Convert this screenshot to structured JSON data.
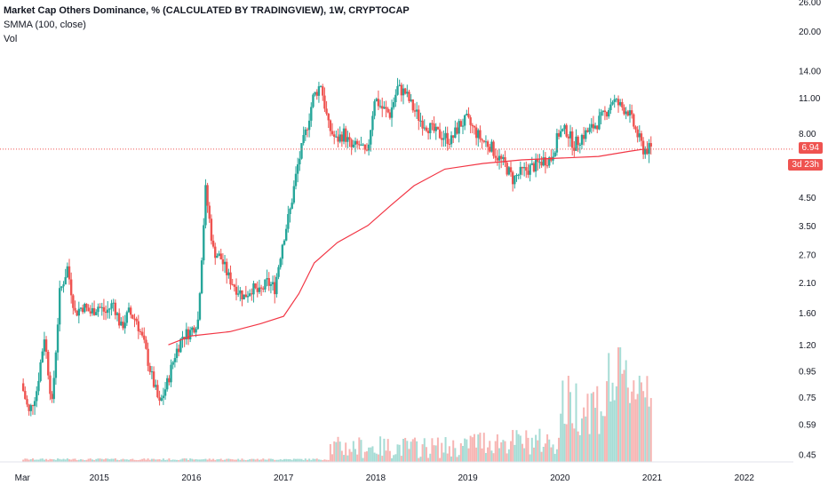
{
  "legend": {
    "title": "Market Cap Others Dominance, % (CALCULATED BY TRADINGVIEW), 1W, CRYPTOCAP",
    "indicator": "SMMA (100, close)",
    "volume_label": "Vol"
  },
  "price_tag": "6.94",
  "timer_tag": "3d 23h",
  "colors": {
    "up": "#26a69a",
    "down": "#ef5350",
    "smma": "#f23645",
    "axis_text": "#131722",
    "last_line": "#ef5350"
  },
  "chart_data": {
    "type": "candlestick",
    "scale": "log",
    "ylim": [
      0.42,
      26
    ],
    "y_ticks": [
      "26.00",
      "20.00",
      "14.00",
      "11.00",
      "8.00",
      "6.94",
      "4.50",
      "3.50",
      "2.70",
      "2.10",
      "1.60",
      "1.20",
      "0.95",
      "0.75",
      "0.59",
      "0.45"
    ],
    "x_ticks": [
      "Mar",
      "2015",
      "2016",
      "2017",
      "2018",
      "2019",
      "2020",
      "2021",
      "2022"
    ],
    "last_value": 6.94,
    "close_series": [
      {
        "date": "2014-03",
        "value": 0.85
      },
      {
        "date": "2014-04",
        "value": 0.65
      },
      {
        "date": "2014-05",
        "value": 0.8
      },
      {
        "date": "2014-06",
        "value": 1.3
      },
      {
        "date": "2014-07",
        "value": 0.7
      },
      {
        "date": "2014-08",
        "value": 1.9
      },
      {
        "date": "2014-09",
        "value": 2.4
      },
      {
        "date": "2014-10",
        "value": 1.6
      },
      {
        "date": "2014-11",
        "value": 1.7
      },
      {
        "date": "2014-12",
        "value": 1.6
      },
      {
        "date": "2015-01",
        "value": 1.7
      },
      {
        "date": "2015-02",
        "value": 1.6
      },
      {
        "date": "2015-03",
        "value": 1.75
      },
      {
        "date": "2015-04",
        "value": 1.4
      },
      {
        "date": "2015-05",
        "value": 1.6
      },
      {
        "date": "2015-06",
        "value": 1.5
      },
      {
        "date": "2015-07",
        "value": 1.2
      },
      {
        "date": "2015-08",
        "value": 0.9
      },
      {
        "date": "2015-09",
        "value": 0.7
      },
      {
        "date": "2015-10",
        "value": 0.85
      },
      {
        "date": "2015-11",
        "value": 1.1
      },
      {
        "date": "2015-12",
        "value": 1.3
      },
      {
        "date": "2016-01",
        "value": 1.35
      },
      {
        "date": "2016-02",
        "value": 1.5
      },
      {
        "date": "2016-03",
        "value": 4.8
      },
      {
        "date": "2016-04",
        "value": 2.8
      },
      {
        "date": "2016-05",
        "value": 2.6
      },
      {
        "date": "2016-06",
        "value": 2.2
      },
      {
        "date": "2016-07",
        "value": 2.0
      },
      {
        "date": "2016-08",
        "value": 1.85
      },
      {
        "date": "2016-09",
        "value": 2.0
      },
      {
        "date": "2016-10",
        "value": 1.9
      },
      {
        "date": "2016-11",
        "value": 2.1
      },
      {
        "date": "2016-12",
        "value": 2.0
      },
      {
        "date": "2017-01",
        "value": 3.0
      },
      {
        "date": "2017-02",
        "value": 4.0
      },
      {
        "date": "2017-03",
        "value": 6.0
      },
      {
        "date": "2017-04",
        "value": 8.0
      },
      {
        "date": "2017-05",
        "value": 11.0
      },
      {
        "date": "2017-06",
        "value": 12.5
      },
      {
        "date": "2017-07",
        "value": 8.5
      },
      {
        "date": "2017-08",
        "value": 7.5
      },
      {
        "date": "2017-09",
        "value": 8.0
      },
      {
        "date": "2017-10",
        "value": 7.0
      },
      {
        "date": "2017-11",
        "value": 7.2
      },
      {
        "date": "2017-12",
        "value": 6.5
      },
      {
        "date": "2018-01",
        "value": 11.0
      },
      {
        "date": "2018-02",
        "value": 10.0
      },
      {
        "date": "2018-03",
        "value": 9.5
      },
      {
        "date": "2018-04",
        "value": 12.0
      },
      {
        "date": "2018-05",
        "value": 11.5
      },
      {
        "date": "2018-06",
        "value": 10.0
      },
      {
        "date": "2018-07",
        "value": 9.0
      },
      {
        "date": "2018-08",
        "value": 8.5
      },
      {
        "date": "2018-09",
        "value": 8.0
      },
      {
        "date": "2018-10",
        "value": 7.8
      },
      {
        "date": "2018-11",
        "value": 7.5
      },
      {
        "date": "2018-12",
        "value": 8.6
      },
      {
        "date": "2019-01",
        "value": 9.0
      },
      {
        "date": "2019-02",
        "value": 8.2
      },
      {
        "date": "2019-03",
        "value": 7.5
      },
      {
        "date": "2019-04",
        "value": 7.2
      },
      {
        "date": "2019-05",
        "value": 6.5
      },
      {
        "date": "2019-06",
        "value": 6.0
      },
      {
        "date": "2019-07",
        "value": 5.3
      },
      {
        "date": "2019-08",
        "value": 5.6
      },
      {
        "date": "2019-09",
        "value": 5.8
      },
      {
        "date": "2019-10",
        "value": 6.0
      },
      {
        "date": "2019-11",
        "value": 6.3
      },
      {
        "date": "2019-12",
        "value": 6.4
      },
      {
        "date": "2020-01",
        "value": 8.0
      },
      {
        "date": "2020-02",
        "value": 8.2
      },
      {
        "date": "2020-03",
        "value": 7.2
      },
      {
        "date": "2020-04",
        "value": 7.8
      },
      {
        "date": "2020-05",
        "value": 8.2
      },
      {
        "date": "2020-06",
        "value": 8.8
      },
      {
        "date": "2020-07",
        "value": 9.5
      },
      {
        "date": "2020-08",
        "value": 10.8
      },
      {
        "date": "2020-09",
        "value": 10.2
      },
      {
        "date": "2020-10",
        "value": 9.8
      },
      {
        "date": "2020-11",
        "value": 8.2
      },
      {
        "date": "2020-12",
        "value": 6.94
      }
    ],
    "smma_series": [
      {
        "date": "2015-10",
        "value": 1.2
      },
      {
        "date": "2016-01",
        "value": 1.3
      },
      {
        "date": "2016-06",
        "value": 1.35
      },
      {
        "date": "2016-10",
        "value": 1.45
      },
      {
        "date": "2017-01",
        "value": 1.55
      },
      {
        "date": "2017-03",
        "value": 1.9
      },
      {
        "date": "2017-05",
        "value": 2.5
      },
      {
        "date": "2017-08",
        "value": 3.0
      },
      {
        "date": "2017-12",
        "value": 3.5
      },
      {
        "date": "2018-03",
        "value": 4.2
      },
      {
        "date": "2018-06",
        "value": 5.0
      },
      {
        "date": "2018-10",
        "value": 5.8
      },
      {
        "date": "2019-03",
        "value": 6.1
      },
      {
        "date": "2019-08",
        "value": 6.3
      },
      {
        "date": "2020-01",
        "value": 6.4
      },
      {
        "date": "2020-06",
        "value": 6.5
      },
      {
        "date": "2020-10",
        "value": 6.8
      },
      {
        "date": "2020-12",
        "value": 6.94
      }
    ]
  }
}
